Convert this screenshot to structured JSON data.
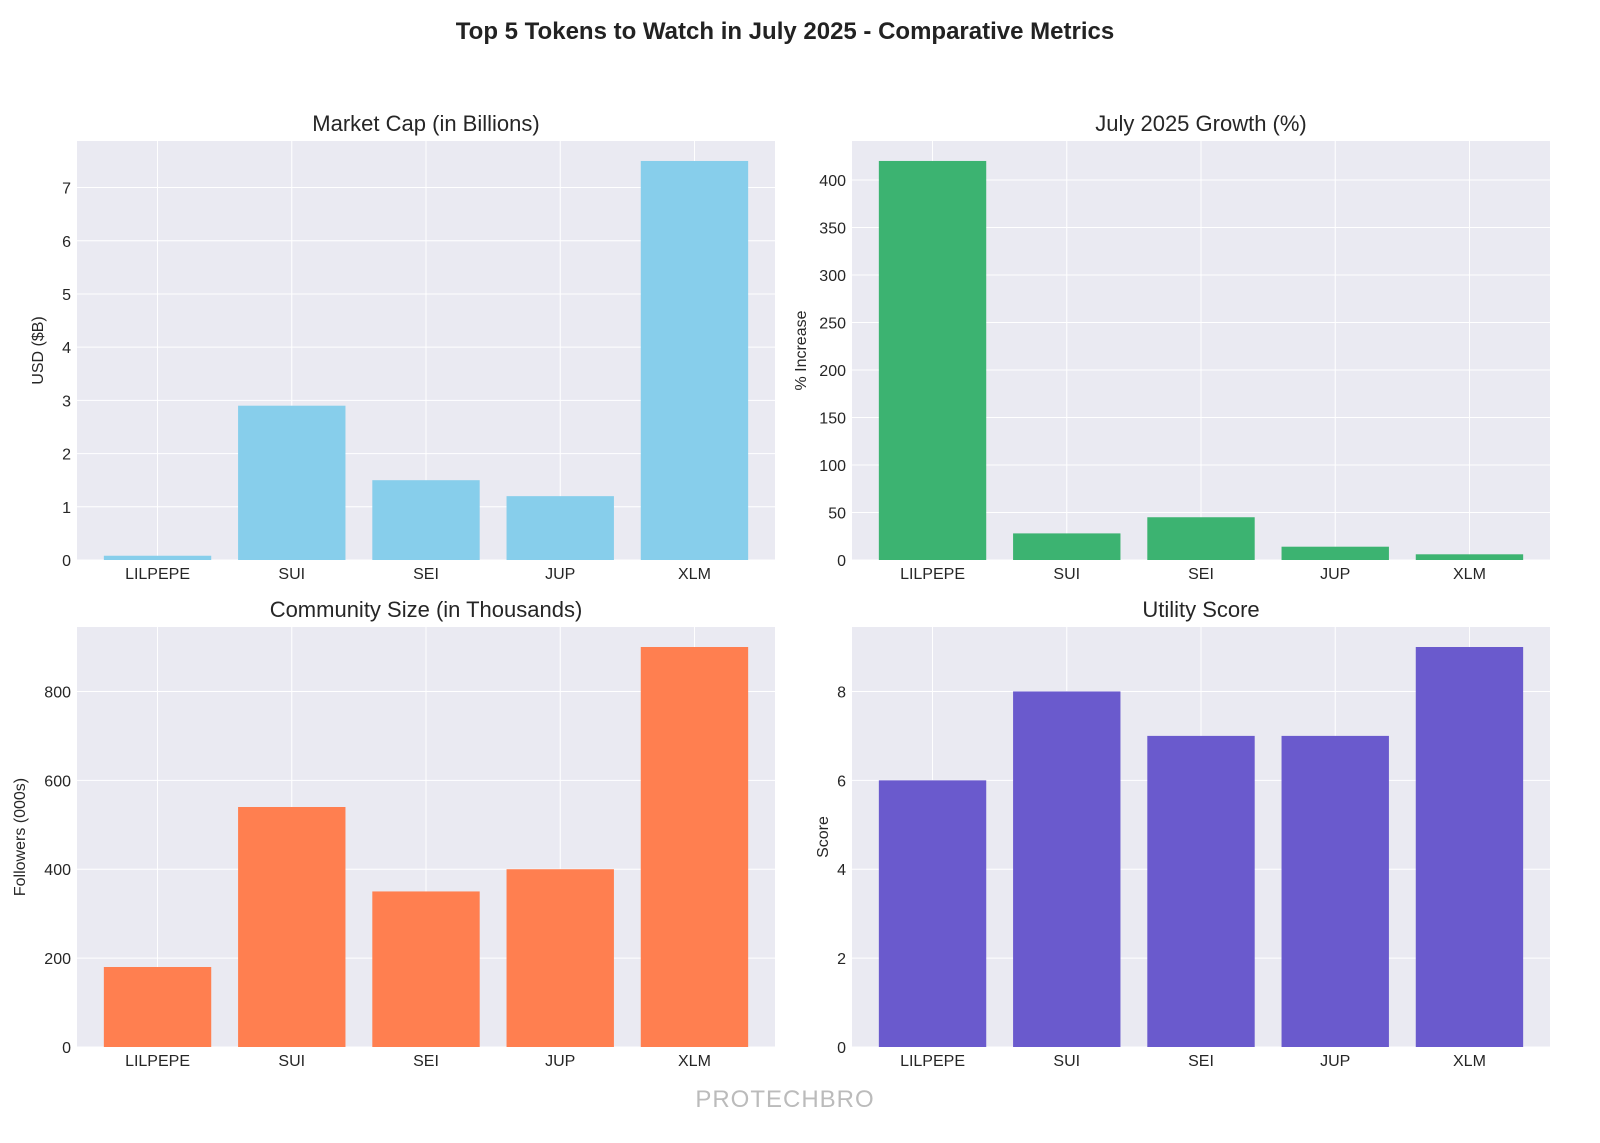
{
  "title": "Top 5 Tokens to Watch in July 2025 - Comparative Metrics",
  "watermark": "PROTECHBRO",
  "chart_data": [
    {
      "type": "bar",
      "title": "Market Cap (in Billions)",
      "xlabel": "",
      "ylabel": "USD ($B)",
      "categories": [
        "LILPEPE",
        "SUI",
        "SEI",
        "JUP",
        "XLM"
      ],
      "values": [
        0.08,
        2.9,
        1.5,
        1.2,
        7.5
      ],
      "ylim": [
        0,
        7.875
      ],
      "yticks": [
        0,
        1,
        2,
        3,
        4,
        5,
        6,
        7
      ],
      "color": "#87CEEB",
      "grid": true
    },
    {
      "type": "bar",
      "title": "July 2025 Growth (%)",
      "xlabel": "",
      "ylabel": "% Increase",
      "categories": [
        "LILPEPE",
        "SUI",
        "SEI",
        "JUP",
        "XLM"
      ],
      "values": [
        420,
        28,
        45,
        14,
        6
      ],
      "ylim": [
        0,
        441
      ],
      "yticks": [
        0,
        50,
        100,
        150,
        200,
        250,
        300,
        350,
        400
      ],
      "color": "#3CB371",
      "grid": true
    },
    {
      "type": "bar",
      "title": "Community Size (in Thousands)",
      "xlabel": "",
      "ylabel": "Followers (000s)",
      "categories": [
        "LILPEPE",
        "SUI",
        "SEI",
        "JUP",
        "XLM"
      ],
      "values": [
        180,
        540,
        350,
        400,
        900
      ],
      "ylim": [
        0,
        945
      ],
      "yticks": [
        0,
        200,
        400,
        600,
        800
      ],
      "color": "#FF7F50",
      "grid": true
    },
    {
      "type": "bar",
      "title": "Utility Score",
      "xlabel": "",
      "ylabel": "Score",
      "categories": [
        "LILPEPE",
        "SUI",
        "SEI",
        "JUP",
        "XLM"
      ],
      "values": [
        6,
        8,
        7,
        7,
        9
      ],
      "ylim": [
        0,
        9.45
      ],
      "yticks": [
        0,
        2,
        4,
        6,
        8
      ],
      "color": "#6A5ACD",
      "grid": true
    }
  ]
}
